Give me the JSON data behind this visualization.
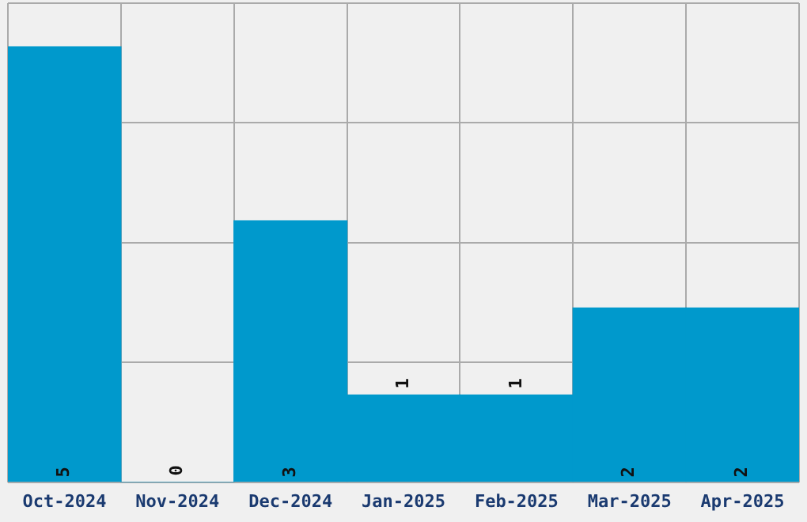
{
  "chart_data": {
    "type": "bar",
    "categories": [
      "Oct-2024",
      "Nov-2024",
      "Dec-2024",
      "Jan-2025",
      "Feb-2025",
      "Mar-2025",
      "Apr-2025"
    ],
    "values": [
      5,
      0,
      3,
      1,
      1,
      2,
      2
    ],
    "color": "#0099cc",
    "data_labels": true,
    "ylim": [
      0,
      5.5
    ],
    "yticks": [
      {
        "value": 0,
        "label": null
      },
      {
        "value": 1.375,
        "label": null
      },
      {
        "value": 2.75,
        "label": null
      },
      {
        "value": 4.125,
        "label": null
      },
      {
        "value": 5.5,
        "label": null
      }
    ],
    "grid": true,
    "tick_labels": "x"
  }
}
